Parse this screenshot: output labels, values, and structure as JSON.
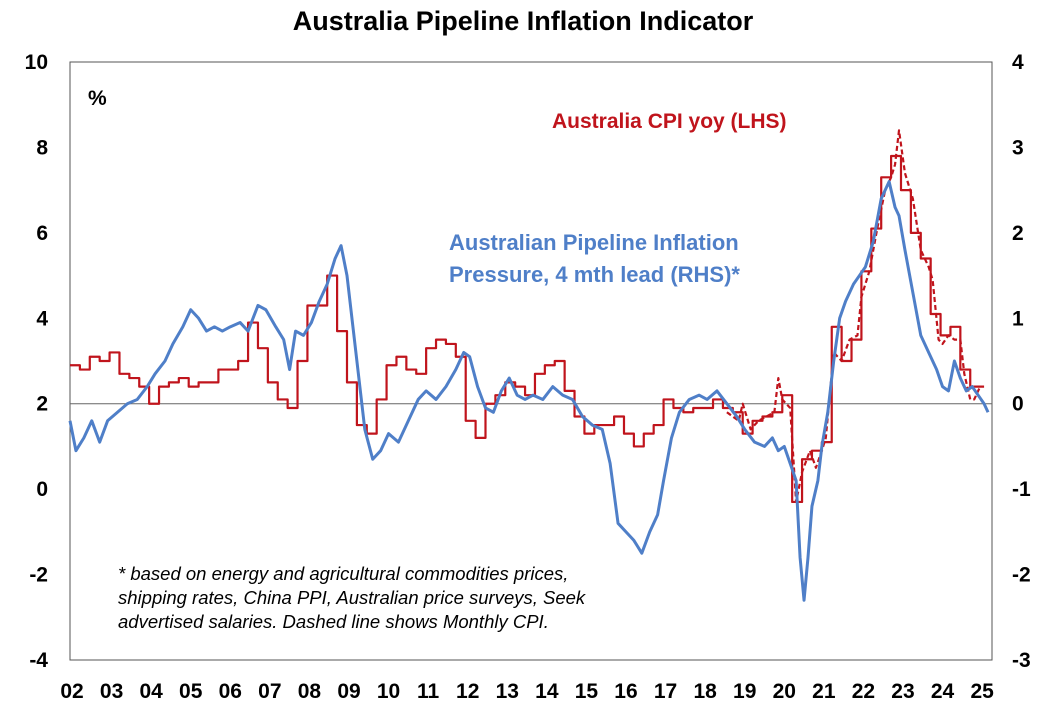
{
  "chart_data": {
    "type": "line",
    "title": "Australia Pipeline Inflation Indicator",
    "ylabel_left": "%",
    "ylim_left": [
      -4,
      10
    ],
    "ylim_right": [
      -3,
      4
    ],
    "yticks_left": [
      "10",
      "8",
      "6",
      "4",
      "2",
      "0",
      "-2",
      "-4"
    ],
    "yticks_right": [
      "4",
      "3",
      "2",
      "1",
      "0",
      "-1",
      "-2",
      "-3"
    ],
    "xticks": [
      "02",
      "03",
      "04",
      "05",
      "06",
      "07",
      "08",
      "09",
      "10",
      "11",
      "12",
      "13",
      "14",
      "15",
      "16",
      "17",
      "18",
      "19",
      "20",
      "21",
      "22",
      "23",
      "24",
      "25"
    ],
    "zero_line_right": 0,
    "annotations": {
      "cpi_label": "Australia CPI yoy (LHS)",
      "pipeline_label_line1": "Australian Pipeline Inflation",
      "pipeline_label_line2": "Pressure, 4 mth lead (RHS)*",
      "note_line1": "* based on energy and agricultural commodities prices,",
      "note_line2": "shipping rates, China PPI, Australian price surveys, Seek",
      "note_line3": "advertised salaries. Dashed line shows Monthly CPI."
    },
    "series": [
      {
        "name": "Australia CPI yoy (LHS)",
        "axis": "left",
        "color": "#c0141c",
        "style": "step",
        "points": [
          [
            2002.0,
            2.9
          ],
          [
            2002.25,
            2.8
          ],
          [
            2002.5,
            3.1
          ],
          [
            2002.75,
            3.0
          ],
          [
            2003.0,
            3.2
          ],
          [
            2003.25,
            2.7
          ],
          [
            2003.5,
            2.6
          ],
          [
            2003.75,
            2.4
          ],
          [
            2004.0,
            2.0
          ],
          [
            2004.25,
            2.4
          ],
          [
            2004.5,
            2.5
          ],
          [
            2004.75,
            2.6
          ],
          [
            2005.0,
            2.4
          ],
          [
            2005.25,
            2.5
          ],
          [
            2005.5,
            2.5
          ],
          [
            2005.75,
            2.8
          ],
          [
            2006.0,
            2.8
          ],
          [
            2006.25,
            3.0
          ],
          [
            2006.5,
            3.9
          ],
          [
            2006.75,
            3.3
          ],
          [
            2007.0,
            2.5
          ],
          [
            2007.25,
            2.1
          ],
          [
            2007.5,
            1.9
          ],
          [
            2007.75,
            3.0
          ],
          [
            2008.0,
            4.3
          ],
          [
            2008.25,
            4.3
          ],
          [
            2008.5,
            5.0
          ],
          [
            2008.75,
            3.7
          ],
          [
            2009.0,
            2.5
          ],
          [
            2009.25,
            1.5
          ],
          [
            2009.5,
            1.3
          ],
          [
            2009.75,
            2.1
          ],
          [
            2010.0,
            2.9
          ],
          [
            2010.25,
            3.1
          ],
          [
            2010.5,
            2.8
          ],
          [
            2010.75,
            2.7
          ],
          [
            2011.0,
            3.3
          ],
          [
            2011.25,
            3.5
          ],
          [
            2011.5,
            3.4
          ],
          [
            2011.75,
            3.1
          ],
          [
            2012.0,
            1.6
          ],
          [
            2012.25,
            1.2
          ],
          [
            2012.5,
            2.0
          ],
          [
            2012.75,
            2.2
          ],
          [
            2013.0,
            2.5
          ],
          [
            2013.25,
            2.4
          ],
          [
            2013.5,
            2.2
          ],
          [
            2013.75,
            2.7
          ],
          [
            2014.0,
            2.9
          ],
          [
            2014.25,
            3.0
          ],
          [
            2014.5,
            2.3
          ],
          [
            2014.75,
            1.7
          ],
          [
            2015.0,
            1.3
          ],
          [
            2015.25,
            1.5
          ],
          [
            2015.5,
            1.5
          ],
          [
            2015.75,
            1.7
          ],
          [
            2016.0,
            1.3
          ],
          [
            2016.25,
            1.0
          ],
          [
            2016.5,
            1.3
          ],
          [
            2016.75,
            1.5
          ],
          [
            2017.0,
            2.1
          ],
          [
            2017.25,
            1.9
          ],
          [
            2017.5,
            1.8
          ],
          [
            2017.75,
            1.9
          ],
          [
            2018.0,
            1.9
          ],
          [
            2018.25,
            2.1
          ],
          [
            2018.5,
            1.9
          ],
          [
            2018.75,
            1.8
          ],
          [
            2019.0,
            1.3
          ],
          [
            2019.25,
            1.6
          ],
          [
            2019.5,
            1.7
          ],
          [
            2019.75,
            1.8
          ],
          [
            2020.0,
            2.2
          ],
          [
            2020.25,
            -0.3
          ],
          [
            2020.5,
            0.7
          ],
          [
            2020.75,
            0.9
          ],
          [
            2021.0,
            1.1
          ],
          [
            2021.25,
            3.8
          ],
          [
            2021.5,
            3.0
          ],
          [
            2021.75,
            3.5
          ],
          [
            2022.0,
            5.1
          ],
          [
            2022.25,
            6.1
          ],
          [
            2022.5,
            7.3
          ],
          [
            2022.75,
            7.8
          ],
          [
            2023.0,
            7.0
          ],
          [
            2023.25,
            6.0
          ],
          [
            2023.5,
            5.4
          ],
          [
            2023.75,
            4.1
          ],
          [
            2024.0,
            3.6
          ],
          [
            2024.25,
            3.8
          ],
          [
            2024.5,
            2.8
          ],
          [
            2024.75,
            2.4
          ],
          [
            2025.0,
            2.4
          ]
        ]
      },
      {
        "name": "Monthly CPI",
        "axis": "left",
        "color": "#c0141c",
        "style": "dashed",
        "points": [
          [
            2018.6,
            1.8
          ],
          [
            2018.9,
            1.6
          ],
          [
            2019.0,
            2.0
          ],
          [
            2019.2,
            1.4
          ],
          [
            2019.4,
            1.6
          ],
          [
            2019.6,
            1.7
          ],
          [
            2019.8,
            1.8
          ],
          [
            2019.9,
            2.6
          ],
          [
            2020.0,
            2.1
          ],
          [
            2020.2,
            1.9
          ],
          [
            2020.35,
            -0.3
          ],
          [
            2020.5,
            0.4
          ],
          [
            2020.7,
            0.9
          ],
          [
            2020.85,
            0.5
          ],
          [
            2021.0,
            0.9
          ],
          [
            2021.1,
            1.2
          ],
          [
            2021.3,
            3.2
          ],
          [
            2021.5,
            3.0
          ],
          [
            2021.7,
            3.5
          ],
          [
            2021.9,
            3.6
          ],
          [
            2022.0,
            4.5
          ],
          [
            2022.2,
            5.1
          ],
          [
            2022.4,
            6.1
          ],
          [
            2022.6,
            7.0
          ],
          [
            2022.75,
            7.3
          ],
          [
            2022.85,
            7.6
          ],
          [
            2022.95,
            8.4
          ],
          [
            2023.1,
            7.4
          ],
          [
            2023.3,
            6.8
          ],
          [
            2023.5,
            5.6
          ],
          [
            2023.7,
            5.2
          ],
          [
            2023.8,
            4.9
          ],
          [
            2023.95,
            3.5
          ],
          [
            2024.05,
            3.4
          ],
          [
            2024.2,
            3.6
          ],
          [
            2024.35,
            3.5
          ],
          [
            2024.5,
            3.5
          ],
          [
            2024.6,
            2.7
          ],
          [
            2024.75,
            2.1
          ],
          [
            2024.85,
            2.1
          ],
          [
            2025.0,
            2.4
          ]
        ]
      },
      {
        "name": "Australian Pipeline Inflation Pressure, 4 mth lead (RHS)*",
        "axis": "right",
        "color": "#4f7fc8",
        "style": "solid",
        "points": [
          [
            2002.0,
            -0.2
          ],
          [
            2002.15,
            -0.55
          ],
          [
            2002.35,
            -0.4
          ],
          [
            2002.55,
            -0.2
          ],
          [
            2002.75,
            -0.45
          ],
          [
            2002.95,
            -0.2
          ],
          [
            2003.2,
            -0.1
          ],
          [
            2003.45,
            0.0
          ],
          [
            2003.7,
            0.05
          ],
          [
            2003.95,
            0.2
          ],
          [
            2004.15,
            0.35
          ],
          [
            2004.4,
            0.5
          ],
          [
            2004.6,
            0.7
          ],
          [
            2004.85,
            0.9
          ],
          [
            2005.05,
            1.1
          ],
          [
            2005.25,
            1.0
          ],
          [
            2005.45,
            0.85
          ],
          [
            2005.65,
            0.9
          ],
          [
            2005.85,
            0.85
          ],
          [
            2006.05,
            0.9
          ],
          [
            2006.3,
            0.95
          ],
          [
            2006.5,
            0.85
          ],
          [
            2006.75,
            1.15
          ],
          [
            2006.95,
            1.1
          ],
          [
            2007.2,
            0.9
          ],
          [
            2007.4,
            0.75
          ],
          [
            2007.55,
            0.4
          ],
          [
            2007.7,
            0.85
          ],
          [
            2007.9,
            0.8
          ],
          [
            2008.1,
            0.95
          ],
          [
            2008.3,
            1.2
          ],
          [
            2008.5,
            1.4
          ],
          [
            2008.7,
            1.7
          ],
          [
            2008.85,
            1.85
          ],
          [
            2009.0,
            1.5
          ],
          [
            2009.15,
            0.9
          ],
          [
            2009.3,
            0.3
          ],
          [
            2009.45,
            -0.3
          ],
          [
            2009.65,
            -0.65
          ],
          [
            2009.85,
            -0.55
          ],
          [
            2010.05,
            -0.35
          ],
          [
            2010.3,
            -0.45
          ],
          [
            2010.55,
            -0.2
          ],
          [
            2010.8,
            0.05
          ],
          [
            2011.0,
            0.15
          ],
          [
            2011.25,
            0.05
          ],
          [
            2011.5,
            0.2
          ],
          [
            2011.75,
            0.4
          ],
          [
            2011.95,
            0.6
          ],
          [
            2012.1,
            0.55
          ],
          [
            2012.3,
            0.2
          ],
          [
            2012.5,
            -0.05
          ],
          [
            2012.7,
            -0.1
          ],
          [
            2012.9,
            0.15
          ],
          [
            2013.1,
            0.3
          ],
          [
            2013.3,
            0.1
          ],
          [
            2013.5,
            0.05
          ],
          [
            2013.7,
            0.1
          ],
          [
            2013.95,
            0.05
          ],
          [
            2014.2,
            0.2
          ],
          [
            2014.45,
            0.1
          ],
          [
            2014.7,
            0.05
          ],
          [
            2014.95,
            -0.15
          ],
          [
            2015.2,
            -0.25
          ],
          [
            2015.45,
            -0.3
          ],
          [
            2015.65,
            -0.7
          ],
          [
            2015.85,
            -1.4
          ],
          [
            2016.05,
            -1.5
          ],
          [
            2016.25,
            -1.6
          ],
          [
            2016.45,
            -1.75
          ],
          [
            2016.65,
            -1.5
          ],
          [
            2016.85,
            -1.3
          ],
          [
            2017.0,
            -0.9
          ],
          [
            2017.2,
            -0.4
          ],
          [
            2017.4,
            -0.1
          ],
          [
            2017.65,
            0.05
          ],
          [
            2017.9,
            0.1
          ],
          [
            2018.1,
            0.05
          ],
          [
            2018.35,
            0.15
          ],
          [
            2018.6,
            0.0
          ],
          [
            2018.85,
            -0.15
          ],
          [
            2019.05,
            -0.3
          ],
          [
            2019.3,
            -0.45
          ],
          [
            2019.55,
            -0.5
          ],
          [
            2019.75,
            -0.4
          ],
          [
            2019.9,
            -0.55
          ],
          [
            2020.05,
            -0.5
          ],
          [
            2020.2,
            -0.7
          ],
          [
            2020.35,
            -0.9
          ],
          [
            2020.45,
            -1.8
          ],
          [
            2020.55,
            -2.3
          ],
          [
            2020.65,
            -1.8
          ],
          [
            2020.75,
            -1.2
          ],
          [
            2020.9,
            -0.9
          ],
          [
            2021.0,
            -0.5
          ],
          [
            2021.15,
            -0.1
          ],
          [
            2021.3,
            0.5
          ],
          [
            2021.45,
            1.0
          ],
          [
            2021.6,
            1.2
          ],
          [
            2021.8,
            1.4
          ],
          [
            2021.95,
            1.5
          ],
          [
            2022.1,
            1.6
          ],
          [
            2022.3,
            1.9
          ],
          [
            2022.5,
            2.4
          ],
          [
            2022.7,
            2.6
          ],
          [
            2022.85,
            2.3
          ],
          [
            2022.95,
            2.2
          ],
          [
            2023.1,
            1.8
          ],
          [
            2023.3,
            1.3
          ],
          [
            2023.5,
            0.8
          ],
          [
            2023.7,
            0.6
          ],
          [
            2023.9,
            0.4
          ],
          [
            2024.05,
            0.2
          ],
          [
            2024.2,
            0.15
          ],
          [
            2024.35,
            0.5
          ],
          [
            2024.5,
            0.3
          ],
          [
            2024.65,
            0.15
          ],
          [
            2024.8,
            0.2
          ],
          [
            2024.95,
            0.1
          ],
          [
            2025.1,
            0.0
          ],
          [
            2025.2,
            -0.1
          ]
        ]
      }
    ]
  }
}
